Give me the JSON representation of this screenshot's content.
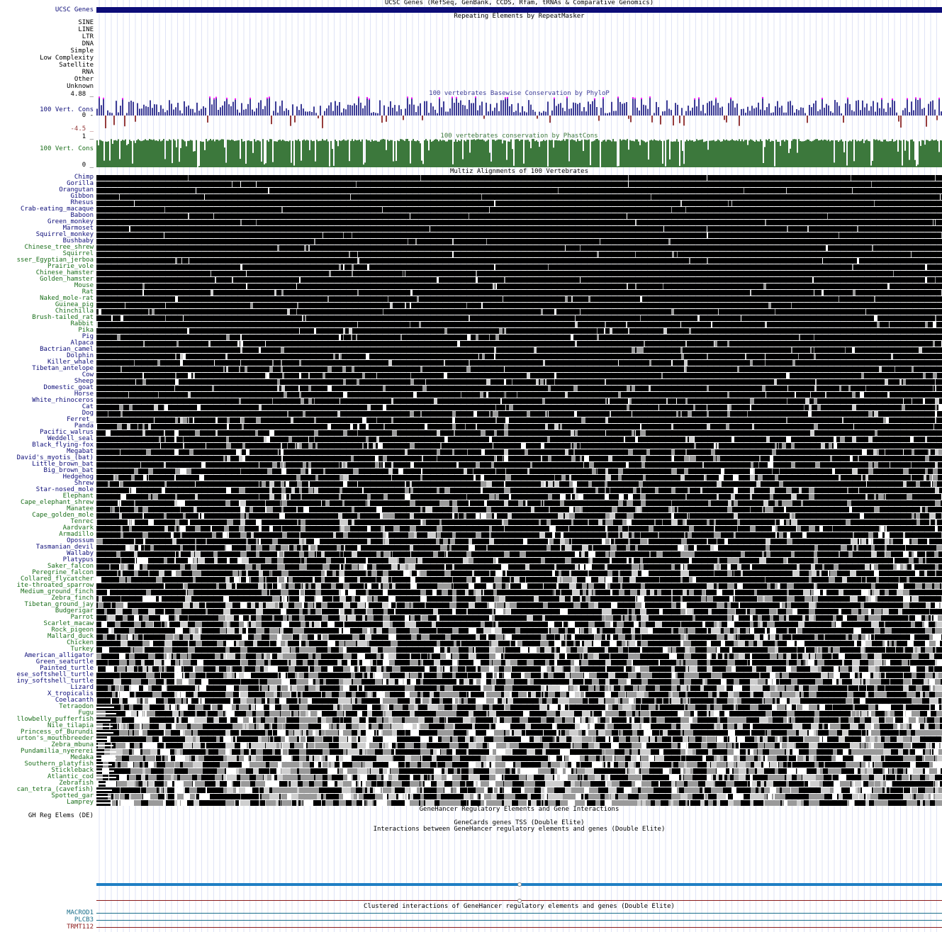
{
  "tracks": {
    "ucsc_genes": {
      "label": "UCSC Genes",
      "title": "UCSC Genes (RefSeq, GenBank, CCDS, Rfam, tRNAs & Comparative Genomics)",
      "color": "#0c0c78"
    },
    "rmsk": {
      "title": "Repeating Elements by RepeatMasker",
      "classes": [
        "SINE",
        "LINE",
        "LTR",
        "DNA",
        "Simple",
        "Low Complexity",
        "Satellite",
        "RNA",
        "Other",
        "Unknown"
      ]
    },
    "phylop": {
      "title": "100 vertebrates Basewise Conservation by PhyloP",
      "label": "100 Vert. Cons",
      "ymax": "4.88 _",
      "zero": "0 -",
      "ymin": "-4.5 _",
      "pos_color": "#3c3c96",
      "neg_color": "#963c3c",
      "clip_color": "#ff00ff"
    },
    "phastcons": {
      "title": "100 vertebrates conservation by PhastCons",
      "label": "100 Vert. Cons",
      "ymax": "1 _",
      "ymin": "0 _",
      "color": "#3c783c"
    },
    "multiz": {
      "title": "Multiz Alignments of 100 Vertebrates",
      "species": [
        {
          "name": "Chimp",
          "color": "#0c0c78"
        },
        {
          "name": "Gorilla",
          "color": "#0c0c78"
        },
        {
          "name": "Orangutan",
          "color": "#0c0c78"
        },
        {
          "name": "Gibbon",
          "color": "#0c0c78"
        },
        {
          "name": "Rhesus",
          "color": "#0c0c78"
        },
        {
          "name": "Crab-eating_macaque",
          "color": "#0c0c78"
        },
        {
          "name": "Baboon",
          "color": "#0c0c78"
        },
        {
          "name": "Green_monkey",
          "color": "#0c0c78"
        },
        {
          "name": "Marmoset",
          "color": "#0c0c78"
        },
        {
          "name": "Squirrel_monkey",
          "color": "#0c0c78"
        },
        {
          "name": "Bushbaby",
          "color": "#0c0c78"
        },
        {
          "name": "Chinese_tree_shrew",
          "color": "#1a6e1a"
        },
        {
          "name": "Squirrel",
          "color": "#1a6e1a"
        },
        {
          "name": "sser_Egyptian_jerboa",
          "color": "#1a6e1a"
        },
        {
          "name": "Prairie_vole",
          "color": "#1a6e1a"
        },
        {
          "name": "Chinese_hamster",
          "color": "#1a6e1a"
        },
        {
          "name": "Golden_hamster",
          "color": "#1a6e1a"
        },
        {
          "name": "Mouse",
          "color": "#1a6e1a"
        },
        {
          "name": "Rat",
          "color": "#1a6e1a"
        },
        {
          "name": "Naked_mole-rat",
          "color": "#1a6e1a"
        },
        {
          "name": "Guinea_pig",
          "color": "#1a6e1a"
        },
        {
          "name": "Chinchilla",
          "color": "#1a6e1a"
        },
        {
          "name": "Brush-tailed_rat",
          "color": "#1a6e1a"
        },
        {
          "name": "Rabbit",
          "color": "#1a6e1a"
        },
        {
          "name": "Pika",
          "color": "#1a6e1a"
        },
        {
          "name": "Pig",
          "color": "#0c0c78"
        },
        {
          "name": "Alpaca",
          "color": "#0c0c78"
        },
        {
          "name": "Bactrian_camel",
          "color": "#0c0c78"
        },
        {
          "name": "Dolphin",
          "color": "#0c0c78"
        },
        {
          "name": "Killer_whale",
          "color": "#0c0c78"
        },
        {
          "name": "Tibetan_antelope",
          "color": "#0c0c78"
        },
        {
          "name": "Cow",
          "color": "#0c0c78"
        },
        {
          "name": "Sheep",
          "color": "#0c0c78"
        },
        {
          "name": "Domestic_goat",
          "color": "#0c0c78"
        },
        {
          "name": "Horse",
          "color": "#0c0c78"
        },
        {
          "name": "White_rhinoceros",
          "color": "#0c0c78"
        },
        {
          "name": "Cat",
          "color": "#0c0c78"
        },
        {
          "name": "Dog",
          "color": "#0c0c78"
        },
        {
          "name": "Ferret_",
          "color": "#0c0c78"
        },
        {
          "name": "Panda",
          "color": "#0c0c78"
        },
        {
          "name": "Pacific_walrus",
          "color": "#0c0c78"
        },
        {
          "name": "Weddell_seal",
          "color": "#0c0c78"
        },
        {
          "name": "Black_flying-fox",
          "color": "#0c0c78"
        },
        {
          "name": "Megabat",
          "color": "#0c0c78"
        },
        {
          "name": "David's_myotis_(bat)",
          "color": "#0c0c78"
        },
        {
          "name": "Little_brown_bat",
          "color": "#0c0c78"
        },
        {
          "name": "Big_brown_bat",
          "color": "#0c0c78"
        },
        {
          "name": "Hedgehog",
          "color": "#0c0c78"
        },
        {
          "name": "Shrew",
          "color": "#0c0c78"
        },
        {
          "name": "Star-nosed_mole",
          "color": "#0c0c78"
        },
        {
          "name": "Elephant",
          "color": "#1a6e1a"
        },
        {
          "name": "Cape_elephant_shrew",
          "color": "#1a6e1a"
        },
        {
          "name": "Manatee",
          "color": "#1a6e1a"
        },
        {
          "name": "Cape_golden_mole",
          "color": "#1a6e1a"
        },
        {
          "name": "Tenrec",
          "color": "#1a6e1a"
        },
        {
          "name": "Aardvark",
          "color": "#1a6e1a"
        },
        {
          "name": "Armadillo",
          "color": "#1a6e1a"
        },
        {
          "name": "Opossum",
          "color": "#0c0c78"
        },
        {
          "name": "Tasmanian_devil",
          "color": "#0c0c78"
        },
        {
          "name": "Wallaby",
          "color": "#0c0c78"
        },
        {
          "name": "Platypus",
          "color": "#0c0c78"
        },
        {
          "name": "Saker_falcon",
          "color": "#1a6e1a"
        },
        {
          "name": "Peregrine_falcon",
          "color": "#1a6e1a"
        },
        {
          "name": "Collared_flycatcher",
          "color": "#1a6e1a"
        },
        {
          "name": "ite-throated_sparrow",
          "color": "#1a6e1a"
        },
        {
          "name": "Medium_ground_finch",
          "color": "#1a6e1a"
        },
        {
          "name": "Zebra_finch",
          "color": "#1a6e1a"
        },
        {
          "name": "Tibetan_ground_jay",
          "color": "#1a6e1a"
        },
        {
          "name": "Budgerigar",
          "color": "#1a6e1a"
        },
        {
          "name": "Parrot",
          "color": "#1a6e1a"
        },
        {
          "name": "Scarlet_macaw",
          "color": "#1a6e1a"
        },
        {
          "name": "Rock_pigeon",
          "color": "#1a6e1a"
        },
        {
          "name": "Mallard_duck",
          "color": "#1a6e1a"
        },
        {
          "name": "Chicken",
          "color": "#1a6e1a"
        },
        {
          "name": "Turkey",
          "color": "#1a6e1a"
        },
        {
          "name": "American_alligator",
          "color": "#0c0c78"
        },
        {
          "name": "Green_seaturtle",
          "color": "#0c0c78"
        },
        {
          "name": "Painted_turtle",
          "color": "#0c0c78"
        },
        {
          "name": "ese_softshell_turtle",
          "color": "#0c0c78"
        },
        {
          "name": "iny_softshell_turtle",
          "color": "#0c0c78"
        },
        {
          "name": "Lizard",
          "color": "#0c0c78"
        },
        {
          "name": "X_tropicalis",
          "color": "#0c0c78"
        },
        {
          "name": "Coelacanth",
          "color": "#0c0c78"
        },
        {
          "name": "Tetraodon",
          "color": "#1a6e1a"
        },
        {
          "name": "Fugu",
          "color": "#1a6e1a"
        },
        {
          "name": "llowbelly_pufferfish",
          "color": "#1a6e1a"
        },
        {
          "name": "Nile_tilapia",
          "color": "#1a6e1a"
        },
        {
          "name": "Princess_of_Burundi",
          "color": "#1a6e1a"
        },
        {
          "name": "urton's_mouthbreeder",
          "color": "#1a6e1a"
        },
        {
          "name": "Zebra_mbuna",
          "color": "#1a6e1a"
        },
        {
          "name": "Pundamilia_nyererei",
          "color": "#1a6e1a"
        },
        {
          "name": "Medaka",
          "color": "#1a6e1a"
        },
        {
          "name": "Southern_platyfish",
          "color": "#1a6e1a"
        },
        {
          "name": "Stickleback",
          "color": "#1a6e1a"
        },
        {
          "name": "Atlantic_cod",
          "color": "#1a6e1a"
        },
        {
          "name": "Zebrafish",
          "color": "#1a6e1a"
        },
        {
          "name": "can_tetra_(cavefish)",
          "color": "#1a6e1a"
        },
        {
          "name": "Spotted_gar",
          "color": "#1a6e1a"
        },
        {
          "name": "Lamprey",
          "color": "#1a6e1a"
        }
      ]
    },
    "genehancer": {
      "title": "GeneHancer Regulatory Elements and Gene Interactions",
      "label": "GH Reg Elems (DE)",
      "tss_title": "GeneCards genes TSS (Double Elite)",
      "interactions_title": "Interactions between GeneHancer regulatory elements and genes (Double Elite)",
      "clustered_title": "Clustered interactions of GeneHancer regulatory elements and genes (Double Elite)",
      "bar_color": "#1f7fc4"
    },
    "genes": [
      {
        "name": "MACROD1",
        "color": "#1a6e8a"
      },
      {
        "name": "PLCB3",
        "color": "#1a6e8a"
      },
      {
        "name": "TRMT112",
        "color": "#8a1a1a"
      }
    ]
  }
}
